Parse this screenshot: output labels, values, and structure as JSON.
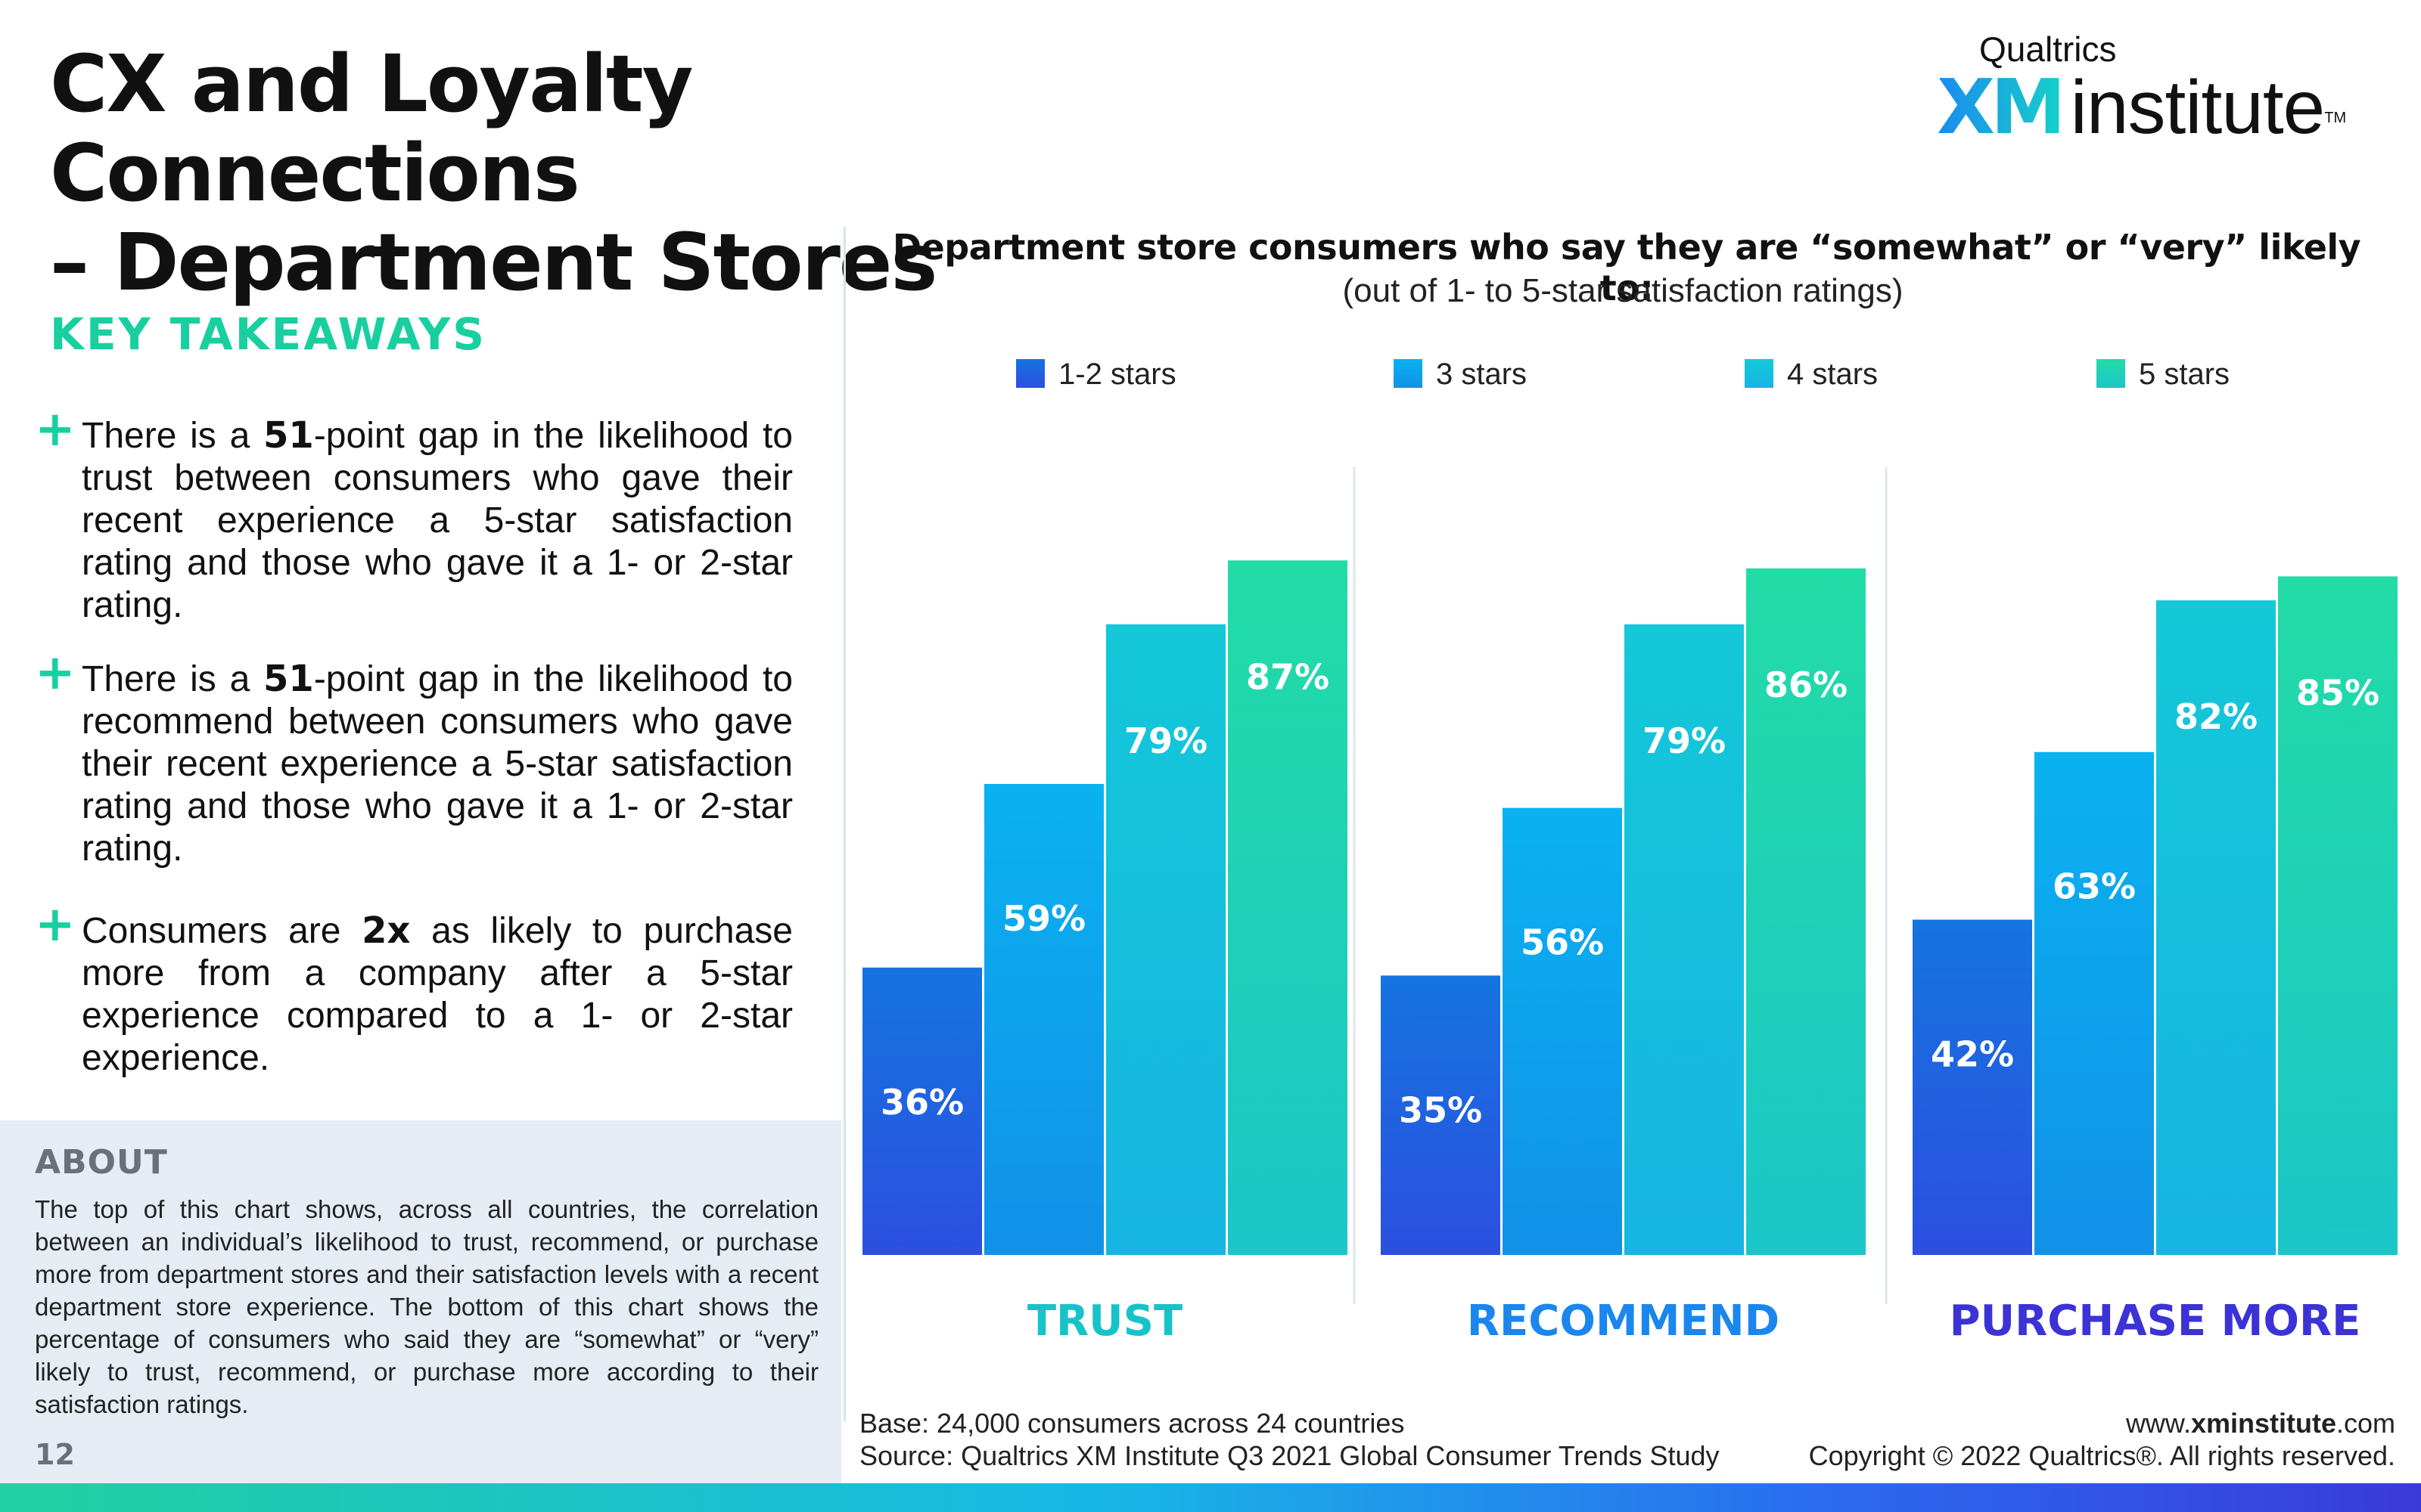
{
  "title": {
    "line1": "CX and Loyalty Connections",
    "line2": "– Department Stores"
  },
  "logo": {
    "top": "Qualtrics",
    "xm": "XM",
    "institute": "institute",
    "tm": "TM"
  },
  "takeaways": {
    "heading": "KEY TAKEAWAYS",
    "items": [
      {
        "pre": "There is a ",
        "bold": "51",
        "post": "-point gap in the likelihood to trust between consumers who gave their recent experience a 5-star satisfaction rating and those who gave it a 1- or 2-star rating."
      },
      {
        "pre": "There is a ",
        "bold": "51",
        "post": "-point gap in the likelihood to recommend between consumers who gave their recent experience a 5-star satisfaction rating and those who gave it a 1- or 2-star rating."
      },
      {
        "pre": "Consumers are ",
        "bold": "2x",
        "post": " as likely to purchase more from a company after a 5-star experience compared to a 1- or 2-star experience."
      }
    ]
  },
  "about": {
    "heading": "ABOUT",
    "body": "The top of this chart shows, across all countries, the correlation between an individual’s likelihood to trust, recommend, or purchase more from department stores and their satisfaction levels with a recent department store experience. The bottom of this chart shows the percentage of consumers who said they are “somewhat” or “very” likely to trust, recommend, or purchase more according to their satisfaction ratings."
  },
  "page_number": "12",
  "chart_data": {
    "type": "bar",
    "title": "Department store consumers who say they are “somewhat” or “very” likely to:",
    "subtitle": "(out of 1- to 5-star satisfaction ratings)",
    "categories": [
      "TRUST",
      "RECOMMEND",
      "PURCHASE MORE"
    ],
    "category_colors": [
      "#16c3c9",
      "#1a86ee",
      "#3b33d6"
    ],
    "series": [
      {
        "name": "1-2 stars",
        "values": [
          36,
          35,
          42
        ],
        "color_top": "#1574e0",
        "color_bottom": "#2c4fe0"
      },
      {
        "name": "3 stars",
        "values": [
          59,
          56,
          63
        ],
        "color_top": "#0ab2f0",
        "color_bottom": "#1191e8"
      },
      {
        "name": "4 stars",
        "values": [
          79,
          79,
          82
        ],
        "color_top": "#14c8d8",
        "color_bottom": "#16b5e2"
      },
      {
        "name": "5 stars",
        "values": [
          87,
          86,
          85
        ],
        "color_top": "#22dca6",
        "color_bottom": "#1bc6c8"
      }
    ],
    "value_suffix": "%",
    "ylim": [
      0,
      100
    ],
    "legend_position": "top",
    "grid": false
  },
  "footer": {
    "base": "Base: 24,000 consumers across 24 countries",
    "source": "Source: Qualtrics XM Institute Q3 2021 Global Consumer Trends Study",
    "url_pre": "www.",
    "url_bold": "xminstitute",
    "url_post": ".com",
    "copyright": "Copyright © 2022 Qualtrics®. All rights reserved."
  }
}
